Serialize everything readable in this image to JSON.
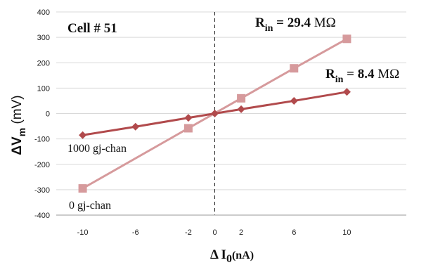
{
  "chart_data": {
    "type": "line",
    "cell_label": "Cell # 51",
    "xlabel": {
      "prefix": "Δ I",
      "sub": "0",
      "unit": "(nA)"
    },
    "ylabel": {
      "prefix": "ΔV",
      "sub": "m",
      "unit": " (mV)"
    },
    "xlim": [
      -12,
      14.5
    ],
    "ylim": [
      -400,
      400
    ],
    "x_ticks": [
      -10,
      -6,
      -2,
      0,
      2,
      6,
      10
    ],
    "y_ticks": [
      400,
      300,
      200,
      100,
      0,
      -100,
      -200,
      -300,
      -400
    ],
    "grid": "horizontal",
    "zero_line": "vertical dashed at x=0",
    "series": [
      {
        "name": "0 gj-chan",
        "color": "#d69a9c",
        "marker": "square",
        "x": [
          -10,
          -2,
          2,
          6,
          10
        ],
        "y": [
          -295,
          -58,
          60,
          178,
          294
        ],
        "annotation": {
          "prefix": "R",
          "sub": "in",
          "value": " = 29.4 ",
          "unit": "MΩ"
        }
      },
      {
        "name": "1000 gj-chan",
        "color": "#b14a4c",
        "marker": "diamond",
        "x": [
          -10,
          -6,
          -2,
          0,
          2,
          6,
          10
        ],
        "y": [
          -85,
          -52,
          -17,
          0,
          17,
          50,
          85
        ],
        "annotation": {
          "prefix": "R",
          "sub": "in",
          "value": " = 8.4 ",
          "unit": "MΩ"
        }
      }
    ]
  }
}
